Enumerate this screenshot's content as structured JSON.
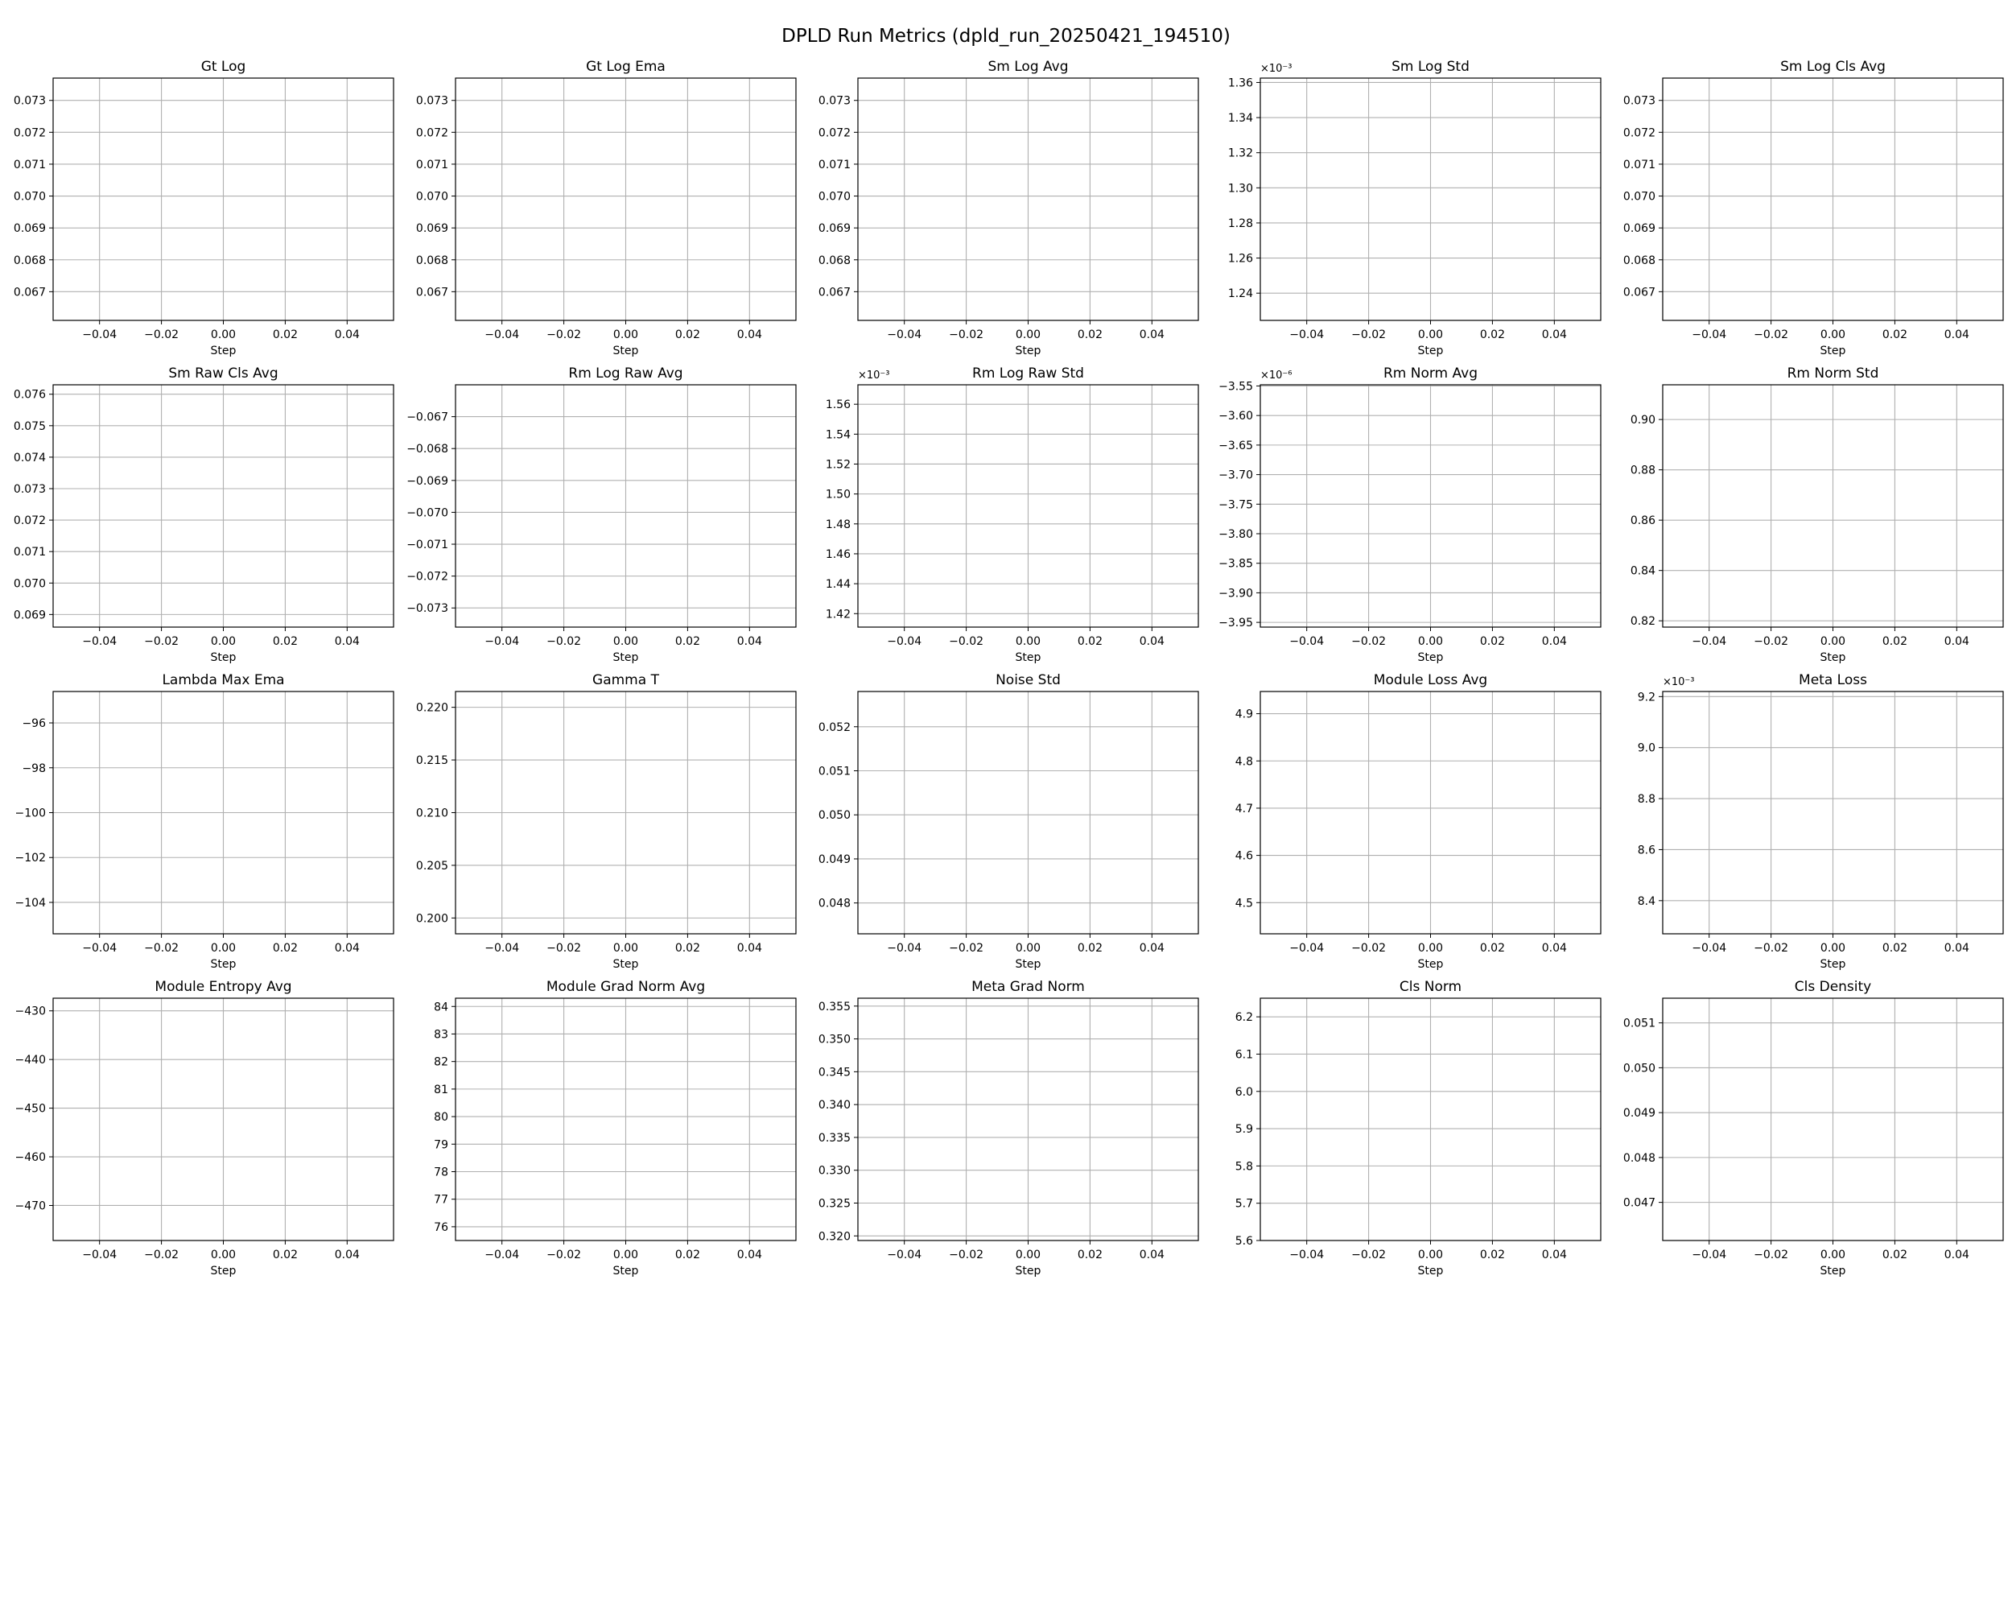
{
  "figure": {
    "title": "DPLD Run Metrics (dpld_run_20250421_194510)"
  },
  "chart_data": [
    {
      "type": "line",
      "title": "Gt Log",
      "xlabel": "Step",
      "ylabel": "",
      "xlim": [
        -0.055,
        0.055
      ],
      "ylim": [
        0.0661,
        0.0737
      ],
      "xticks": [
        -0.04,
        -0.02,
        0.0,
        0.02,
        0.04
      ],
      "xtick_labels": [
        "−0.04",
        "−0.02",
        "0.00",
        "0.02",
        "0.04"
      ],
      "yticks": [
        0.067,
        0.068,
        0.069,
        0.07,
        0.071,
        0.072,
        0.073
      ],
      "ytick_labels": [
        "0.067",
        "0.068",
        "0.069",
        "0.070",
        "0.071",
        "0.072",
        "0.073"
      ],
      "offset_text": "",
      "grid": true,
      "series": []
    },
    {
      "type": "line",
      "title": "Gt Log Ema",
      "xlabel": "Step",
      "ylabel": "",
      "xlim": [
        -0.055,
        0.055
      ],
      "ylim": [
        0.0661,
        0.0737
      ],
      "xticks": [
        -0.04,
        -0.02,
        0.0,
        0.02,
        0.04
      ],
      "xtick_labels": [
        "−0.04",
        "−0.02",
        "0.00",
        "0.02",
        "0.04"
      ],
      "yticks": [
        0.067,
        0.068,
        0.069,
        0.07,
        0.071,
        0.072,
        0.073
      ],
      "ytick_labels": [
        "0.067",
        "0.068",
        "0.069",
        "0.070",
        "0.071",
        "0.072",
        "0.073"
      ],
      "offset_text": "",
      "grid": true,
      "series": []
    },
    {
      "type": "line",
      "title": "Sm Log Avg",
      "xlabel": "Step",
      "ylabel": "",
      "xlim": [
        -0.055,
        0.055
      ],
      "ylim": [
        0.0661,
        0.0737
      ],
      "xticks": [
        -0.04,
        -0.02,
        0.0,
        0.02,
        0.04
      ],
      "xtick_labels": [
        "−0.04",
        "−0.02",
        "0.00",
        "0.02",
        "0.04"
      ],
      "yticks": [
        0.067,
        0.068,
        0.069,
        0.07,
        0.071,
        0.072,
        0.073
      ],
      "ytick_labels": [
        "0.067",
        "0.068",
        "0.069",
        "0.070",
        "0.071",
        "0.072",
        "0.073"
      ],
      "offset_text": "",
      "grid": true,
      "series": []
    },
    {
      "type": "line",
      "title": "Sm Log Std",
      "xlabel": "Step",
      "ylabel": "",
      "xlim": [
        -0.055,
        0.055
      ],
      "ylim": [
        1.2245,
        1.3625
      ],
      "xticks": [
        -0.04,
        -0.02,
        0.0,
        0.02,
        0.04
      ],
      "xtick_labels": [
        "−0.04",
        "−0.02",
        "0.00",
        "0.02",
        "0.04"
      ],
      "yticks": [
        1.24,
        1.26,
        1.28,
        1.3,
        1.32,
        1.34,
        1.36
      ],
      "ytick_labels": [
        "1.24",
        "1.26",
        "1.28",
        "1.30",
        "1.32",
        "1.34",
        "1.36"
      ],
      "offset_text": "×10⁻³",
      "grid": true,
      "series": []
    },
    {
      "type": "line",
      "title": "Sm Log Cls Avg",
      "xlabel": "Step",
      "ylabel": "",
      "xlim": [
        -0.055,
        0.055
      ],
      "ylim": [
        0.0661,
        0.0737
      ],
      "xticks": [
        -0.04,
        -0.02,
        0.0,
        0.02,
        0.04
      ],
      "xtick_labels": [
        "−0.04",
        "−0.02",
        "0.00",
        "0.02",
        "0.04"
      ],
      "yticks": [
        0.067,
        0.068,
        0.069,
        0.07,
        0.071,
        0.072,
        0.073
      ],
      "ytick_labels": [
        "0.067",
        "0.068",
        "0.069",
        "0.070",
        "0.071",
        "0.072",
        "0.073"
      ],
      "offset_text": "",
      "grid": true,
      "series": []
    },
    {
      "type": "line",
      "title": "Sm Raw Cls Avg",
      "xlabel": "Step",
      "ylabel": "",
      "xlim": [
        -0.055,
        0.055
      ],
      "ylim": [
        0.0686,
        0.0763
      ],
      "xticks": [
        -0.04,
        -0.02,
        0.0,
        0.02,
        0.04
      ],
      "xtick_labels": [
        "−0.04",
        "−0.02",
        "0.00",
        "0.02",
        "0.04"
      ],
      "yticks": [
        0.069,
        0.07,
        0.071,
        0.072,
        0.073,
        0.074,
        0.075,
        0.076
      ],
      "ytick_labels": [
        "0.069",
        "0.070",
        "0.071",
        "0.072",
        "0.073",
        "0.074",
        "0.075",
        "0.076"
      ],
      "offset_text": "",
      "grid": true,
      "series": []
    },
    {
      "type": "line",
      "title": "Rm Log Raw Avg",
      "xlabel": "Step",
      "ylabel": "",
      "xlim": [
        -0.055,
        0.055
      ],
      "ylim": [
        -0.0736,
        -0.066
      ],
      "xticks": [
        -0.04,
        -0.02,
        0.0,
        0.02,
        0.04
      ],
      "xtick_labels": [
        "−0.04",
        "−0.02",
        "0.00",
        "0.02",
        "0.04"
      ],
      "yticks": [
        -0.073,
        -0.072,
        -0.071,
        -0.07,
        -0.069,
        -0.068,
        -0.067
      ],
      "ytick_labels": [
        "−0.073",
        "−0.072",
        "−0.071",
        "−0.070",
        "−0.069",
        "−0.068",
        "−0.067"
      ],
      "offset_text": "",
      "grid": true,
      "series": []
    },
    {
      "type": "line",
      "title": "Rm Log Raw Std",
      "xlabel": "Step",
      "ylabel": "",
      "xlim": [
        -0.055,
        0.055
      ],
      "ylim": [
        1.411,
        1.573
      ],
      "xticks": [
        -0.04,
        -0.02,
        0.0,
        0.02,
        0.04
      ],
      "xtick_labels": [
        "−0.04",
        "−0.02",
        "0.00",
        "0.02",
        "0.04"
      ],
      "yticks": [
        1.42,
        1.44,
        1.46,
        1.48,
        1.5,
        1.52,
        1.54,
        1.56
      ],
      "ytick_labels": [
        "1.42",
        "1.44",
        "1.46",
        "1.48",
        "1.50",
        "1.52",
        "1.54",
        "1.56"
      ],
      "offset_text": "×10⁻³",
      "grid": true,
      "series": []
    },
    {
      "type": "line",
      "title": "Rm Norm Avg",
      "xlabel": "Step",
      "ylabel": "",
      "xlim": [
        -0.055,
        0.055
      ],
      "ylim": [
        -3.958,
        -3.548
      ],
      "xticks": [
        -0.04,
        -0.02,
        0.0,
        0.02,
        0.04
      ],
      "xtick_labels": [
        "−0.04",
        "−0.02",
        "0.00",
        "0.02",
        "0.04"
      ],
      "yticks": [
        -3.95,
        -3.9,
        -3.85,
        -3.8,
        -3.75,
        -3.7,
        -3.65,
        -3.6,
        -3.55
      ],
      "ytick_labels": [
        "−3.95",
        "−3.90",
        "−3.85",
        "−3.80",
        "−3.75",
        "−3.70",
        "−3.65",
        "−3.60",
        "−3.55"
      ],
      "offset_text": "×10⁻⁶",
      "grid": true,
      "series": []
    },
    {
      "type": "line",
      "title": "Rm Norm Std",
      "xlabel": "Step",
      "ylabel": "",
      "xlim": [
        -0.055,
        0.055
      ],
      "ylim": [
        0.8175,
        0.9138
      ],
      "xticks": [
        -0.04,
        -0.02,
        0.0,
        0.02,
        0.04
      ],
      "xtick_labels": [
        "−0.04",
        "−0.02",
        "0.00",
        "0.02",
        "0.04"
      ],
      "yticks": [
        0.82,
        0.84,
        0.86,
        0.88,
        0.9
      ],
      "ytick_labels": [
        "0.82",
        "0.84",
        "0.86",
        "0.88",
        "0.90"
      ],
      "offset_text": "",
      "grid": true,
      "series": []
    },
    {
      "type": "line",
      "title": "Lambda Max Ema",
      "xlabel": "Step",
      "ylabel": "",
      "xlim": [
        -0.055,
        0.055
      ],
      "ylim": [
        -105.4,
        -94.6
      ],
      "xticks": [
        -0.04,
        -0.02,
        0.0,
        0.02,
        0.04
      ],
      "xtick_labels": [
        "−0.04",
        "−0.02",
        "0.00",
        "0.02",
        "0.04"
      ],
      "yticks": [
        -104,
        -102,
        -100,
        -98,
        -96
      ],
      "ytick_labels": [
        "−104",
        "−102",
        "−100",
        "−98",
        "−96"
      ],
      "offset_text": "",
      "grid": true,
      "series": []
    },
    {
      "type": "line",
      "title": "Gamma T",
      "xlabel": "Step",
      "ylabel": "",
      "xlim": [
        -0.055,
        0.055
      ],
      "ylim": [
        0.1985,
        0.2215
      ],
      "xticks": [
        -0.04,
        -0.02,
        0.0,
        0.02,
        0.04
      ],
      "xtick_labels": [
        "−0.04",
        "−0.02",
        "0.00",
        "0.02",
        "0.04"
      ],
      "yticks": [
        0.2,
        0.205,
        0.21,
        0.215,
        0.22
      ],
      "ytick_labels": [
        "0.200",
        "0.205",
        "0.210",
        "0.215",
        "0.220"
      ],
      "offset_text": "",
      "grid": true,
      "series": []
    },
    {
      "type": "line",
      "title": "Noise Std",
      "xlabel": "Step",
      "ylabel": "",
      "xlim": [
        -0.055,
        0.055
      ],
      "ylim": [
        0.0473,
        0.0528
      ],
      "xticks": [
        -0.04,
        -0.02,
        0.0,
        0.02,
        0.04
      ],
      "xtick_labels": [
        "−0.04",
        "−0.02",
        "0.00",
        "0.02",
        "0.04"
      ],
      "yticks": [
        0.048,
        0.049,
        0.05,
        0.051,
        0.052
      ],
      "ytick_labels": [
        "0.048",
        "0.049",
        "0.050",
        "0.051",
        "0.052"
      ],
      "offset_text": "",
      "grid": true,
      "series": []
    },
    {
      "type": "line",
      "title": "Module Loss Avg",
      "xlabel": "Step",
      "ylabel": "",
      "xlim": [
        -0.055,
        0.055
      ],
      "ylim": [
        4.434,
        4.947
      ],
      "xticks": [
        -0.04,
        -0.02,
        0.0,
        0.02,
        0.04
      ],
      "xtick_labels": [
        "−0.04",
        "−0.02",
        "0.00",
        "0.02",
        "0.04"
      ],
      "yticks": [
        4.5,
        4.6,
        4.7,
        4.8,
        4.9
      ],
      "ytick_labels": [
        "4.5",
        "4.6",
        "4.7",
        "4.8",
        "4.9"
      ],
      "offset_text": "",
      "grid": true,
      "series": []
    },
    {
      "type": "line",
      "title": "Meta Loss",
      "xlabel": "Step",
      "ylabel": "",
      "xlim": [
        -0.055,
        0.055
      ],
      "ylim": [
        8.27,
        9.22
      ],
      "xticks": [
        -0.04,
        -0.02,
        0.0,
        0.02,
        0.04
      ],
      "xtick_labels": [
        "−0.04",
        "−0.02",
        "0.00",
        "0.02",
        "0.04"
      ],
      "yticks": [
        8.4,
        8.6,
        8.8,
        9.0,
        9.2
      ],
      "ytick_labels": [
        "8.4",
        "8.6",
        "8.8",
        "9.0",
        "9.2"
      ],
      "offset_text": "×10⁻³",
      "grid": true,
      "series": []
    },
    {
      "type": "line",
      "title": "Module Entropy Avg",
      "xlabel": "Step",
      "ylabel": "",
      "xlim": [
        -0.055,
        0.055
      ],
      "ylim": [
        -477.2,
        -427.4
      ],
      "xticks": [
        -0.04,
        -0.02,
        0.0,
        0.02,
        0.04
      ],
      "xtick_labels": [
        "−0.04",
        "−0.02",
        "0.00",
        "0.02",
        "0.04"
      ],
      "yticks": [
        -470,
        -460,
        -450,
        -440,
        -430
      ],
      "ytick_labels": [
        "−470",
        "−460",
        "−450",
        "−440",
        "−430"
      ],
      "offset_text": "",
      "grid": true,
      "series": []
    },
    {
      "type": "line",
      "title": "Module Grad Norm Avg",
      "xlabel": "Step",
      "ylabel": "",
      "xlim": [
        -0.055,
        0.055
      ],
      "ylim": [
        75.5,
        84.3
      ],
      "xticks": [
        -0.04,
        -0.02,
        0.0,
        0.02,
        0.04
      ],
      "xtick_labels": [
        "−0.04",
        "−0.02",
        "0.00",
        "0.02",
        "0.04"
      ],
      "yticks": [
        76,
        77,
        78,
        79,
        80,
        81,
        82,
        83,
        84
      ],
      "ytick_labels": [
        "76",
        "77",
        "78",
        "79",
        "80",
        "81",
        "82",
        "83",
        "84"
      ],
      "offset_text": "",
      "grid": true,
      "series": []
    },
    {
      "type": "line",
      "title": "Meta Grad Norm",
      "xlabel": "Step",
      "ylabel": "",
      "xlim": [
        -0.055,
        0.055
      ],
      "ylim": [
        0.3193,
        0.3562
      ],
      "xticks": [
        -0.04,
        -0.02,
        0.0,
        0.02,
        0.04
      ],
      "xtick_labels": [
        "−0.04",
        "−0.02",
        "0.00",
        "0.02",
        "0.04"
      ],
      "yticks": [
        0.32,
        0.325,
        0.33,
        0.335,
        0.34,
        0.345,
        0.35,
        0.355
      ],
      "ytick_labels": [
        "0.320",
        "0.325",
        "0.330",
        "0.335",
        "0.340",
        "0.345",
        "0.350",
        "0.355"
      ],
      "offset_text": "",
      "grid": true,
      "series": []
    },
    {
      "type": "line",
      "title": "Cls Norm",
      "xlabel": "Step",
      "ylabel": "",
      "xlim": [
        -0.055,
        0.055
      ],
      "ylim": [
        5.6,
        6.25
      ],
      "xticks": [
        -0.04,
        -0.02,
        0.0,
        0.02,
        0.04
      ],
      "xtick_labels": [
        "−0.04",
        "−0.02",
        "0.00",
        "0.02",
        "0.04"
      ],
      "yticks": [
        5.6,
        5.7,
        5.8,
        5.9,
        6.0,
        6.1,
        6.2
      ],
      "ytick_labels": [
        "5.6",
        "5.7",
        "5.8",
        "5.9",
        "6.0",
        "6.1",
        "6.2"
      ],
      "offset_text": "",
      "grid": true,
      "series": []
    },
    {
      "type": "line",
      "title": "Cls Density",
      "xlabel": "Step",
      "ylabel": "",
      "xlim": [
        -0.055,
        0.055
      ],
      "ylim": [
        0.04615,
        0.05155
      ],
      "xticks": [
        -0.04,
        -0.02,
        0.0,
        0.02,
        0.04
      ],
      "xtick_labels": [
        "−0.04",
        "−0.02",
        "0.00",
        "0.02",
        "0.04"
      ],
      "yticks": [
        0.047,
        0.048,
        0.049,
        0.05,
        0.051
      ],
      "ytick_labels": [
        "0.047",
        "0.048",
        "0.049",
        "0.050",
        "0.051"
      ],
      "offset_text": "",
      "grid": true,
      "series": []
    }
  ]
}
